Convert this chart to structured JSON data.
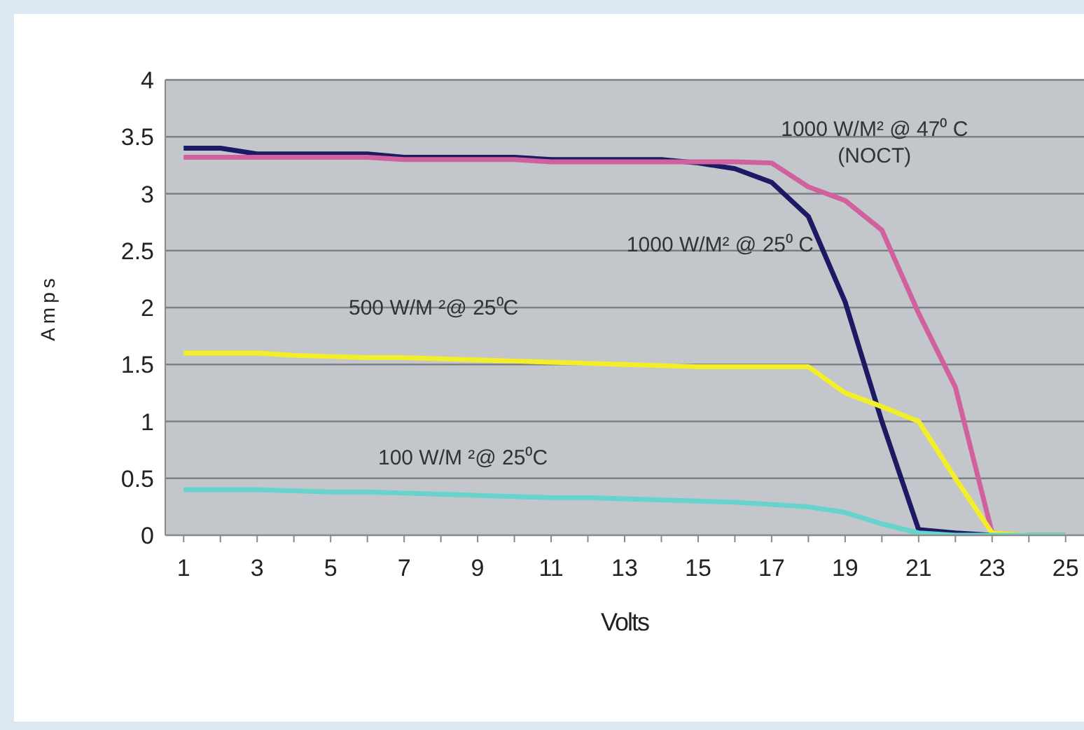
{
  "chart_data": {
    "type": "line",
    "xlabel": "Volts",
    "ylabel": "Amps",
    "x": [
      1,
      2,
      3,
      4,
      5,
      6,
      7,
      8,
      9,
      10,
      11,
      12,
      13,
      14,
      15,
      16,
      17,
      18,
      19,
      20,
      21,
      22,
      23,
      24,
      25
    ],
    "series": [
      {
        "name": "1000 W/M² @ 25⁰ C",
        "color": "#1c1a63",
        "values": [
          3.4,
          3.4,
          3.35,
          3.35,
          3.35,
          3.35,
          3.32,
          3.32,
          3.32,
          3.32,
          3.3,
          3.3,
          3.3,
          3.3,
          3.27,
          3.22,
          3.1,
          2.8,
          2.05,
          1.0,
          0.05,
          0.02,
          0,
          0,
          0
        ]
      },
      {
        "name": "1000 W/M² @ 47⁰ C\n(NOCT)",
        "color": "#d0609e",
        "values": [
          3.32,
          3.32,
          3.32,
          3.32,
          3.32,
          3.32,
          3.3,
          3.3,
          3.3,
          3.3,
          3.28,
          3.28,
          3.28,
          3.28,
          3.28,
          3.28,
          3.27,
          3.06,
          2.94,
          2.68,
          1.95,
          1.3,
          0.02,
          0,
          0
        ]
      },
      {
        "name": "500 W/M ²@ 25⁰C",
        "color": "#f2ee2a",
        "values": [
          1.6,
          1.6,
          1.6,
          1.58,
          1.57,
          1.56,
          1.56,
          1.55,
          1.54,
          1.53,
          1.52,
          1.51,
          1.5,
          1.49,
          1.48,
          1.48,
          1.48,
          1.48,
          1.25,
          1.13,
          1.0,
          0.5,
          0.02,
          0,
          0
        ]
      },
      {
        "name": "100 W/M ²@ 25⁰C",
        "color": "#68d2cc",
        "values": [
          0.4,
          0.4,
          0.4,
          0.39,
          0.38,
          0.38,
          0.37,
          0.36,
          0.35,
          0.34,
          0.33,
          0.33,
          0.32,
          0.31,
          0.3,
          0.29,
          0.27,
          0.25,
          0.2,
          0.1,
          0.02,
          0,
          0,
          0,
          0
        ]
      }
    ],
    "xlim": [
      0.5,
      25.5
    ],
    "xticks": [
      1,
      {
        "value": 2,
        "label": null
      },
      3,
      {
        "value": 4,
        "label": null
      },
      5,
      {
        "value": 6,
        "label": null
      },
      7,
      {
        "value": 8,
        "label": null
      },
      9,
      {
        "value": 10,
        "label": null
      },
      11,
      {
        "value": 12,
        "label": null
      },
      13,
      {
        "value": 14,
        "label": null
      },
      15,
      {
        "value": 16,
        "label": null
      },
      17,
      {
        "value": 18,
        "label": null
      },
      19,
      {
        "value": 20,
        "label": null
      },
      21,
      {
        "value": 22,
        "label": null
      },
      23,
      {
        "value": 24,
        "label": null
      },
      25
    ],
    "ylim": [
      0,
      4
    ],
    "yticks": [
      0,
      0.5,
      1,
      1.5,
      2,
      2.5,
      3,
      3.5,
      4
    ],
    "grid": "y",
    "marker": "none",
    "line_style": "solid"
  }
}
